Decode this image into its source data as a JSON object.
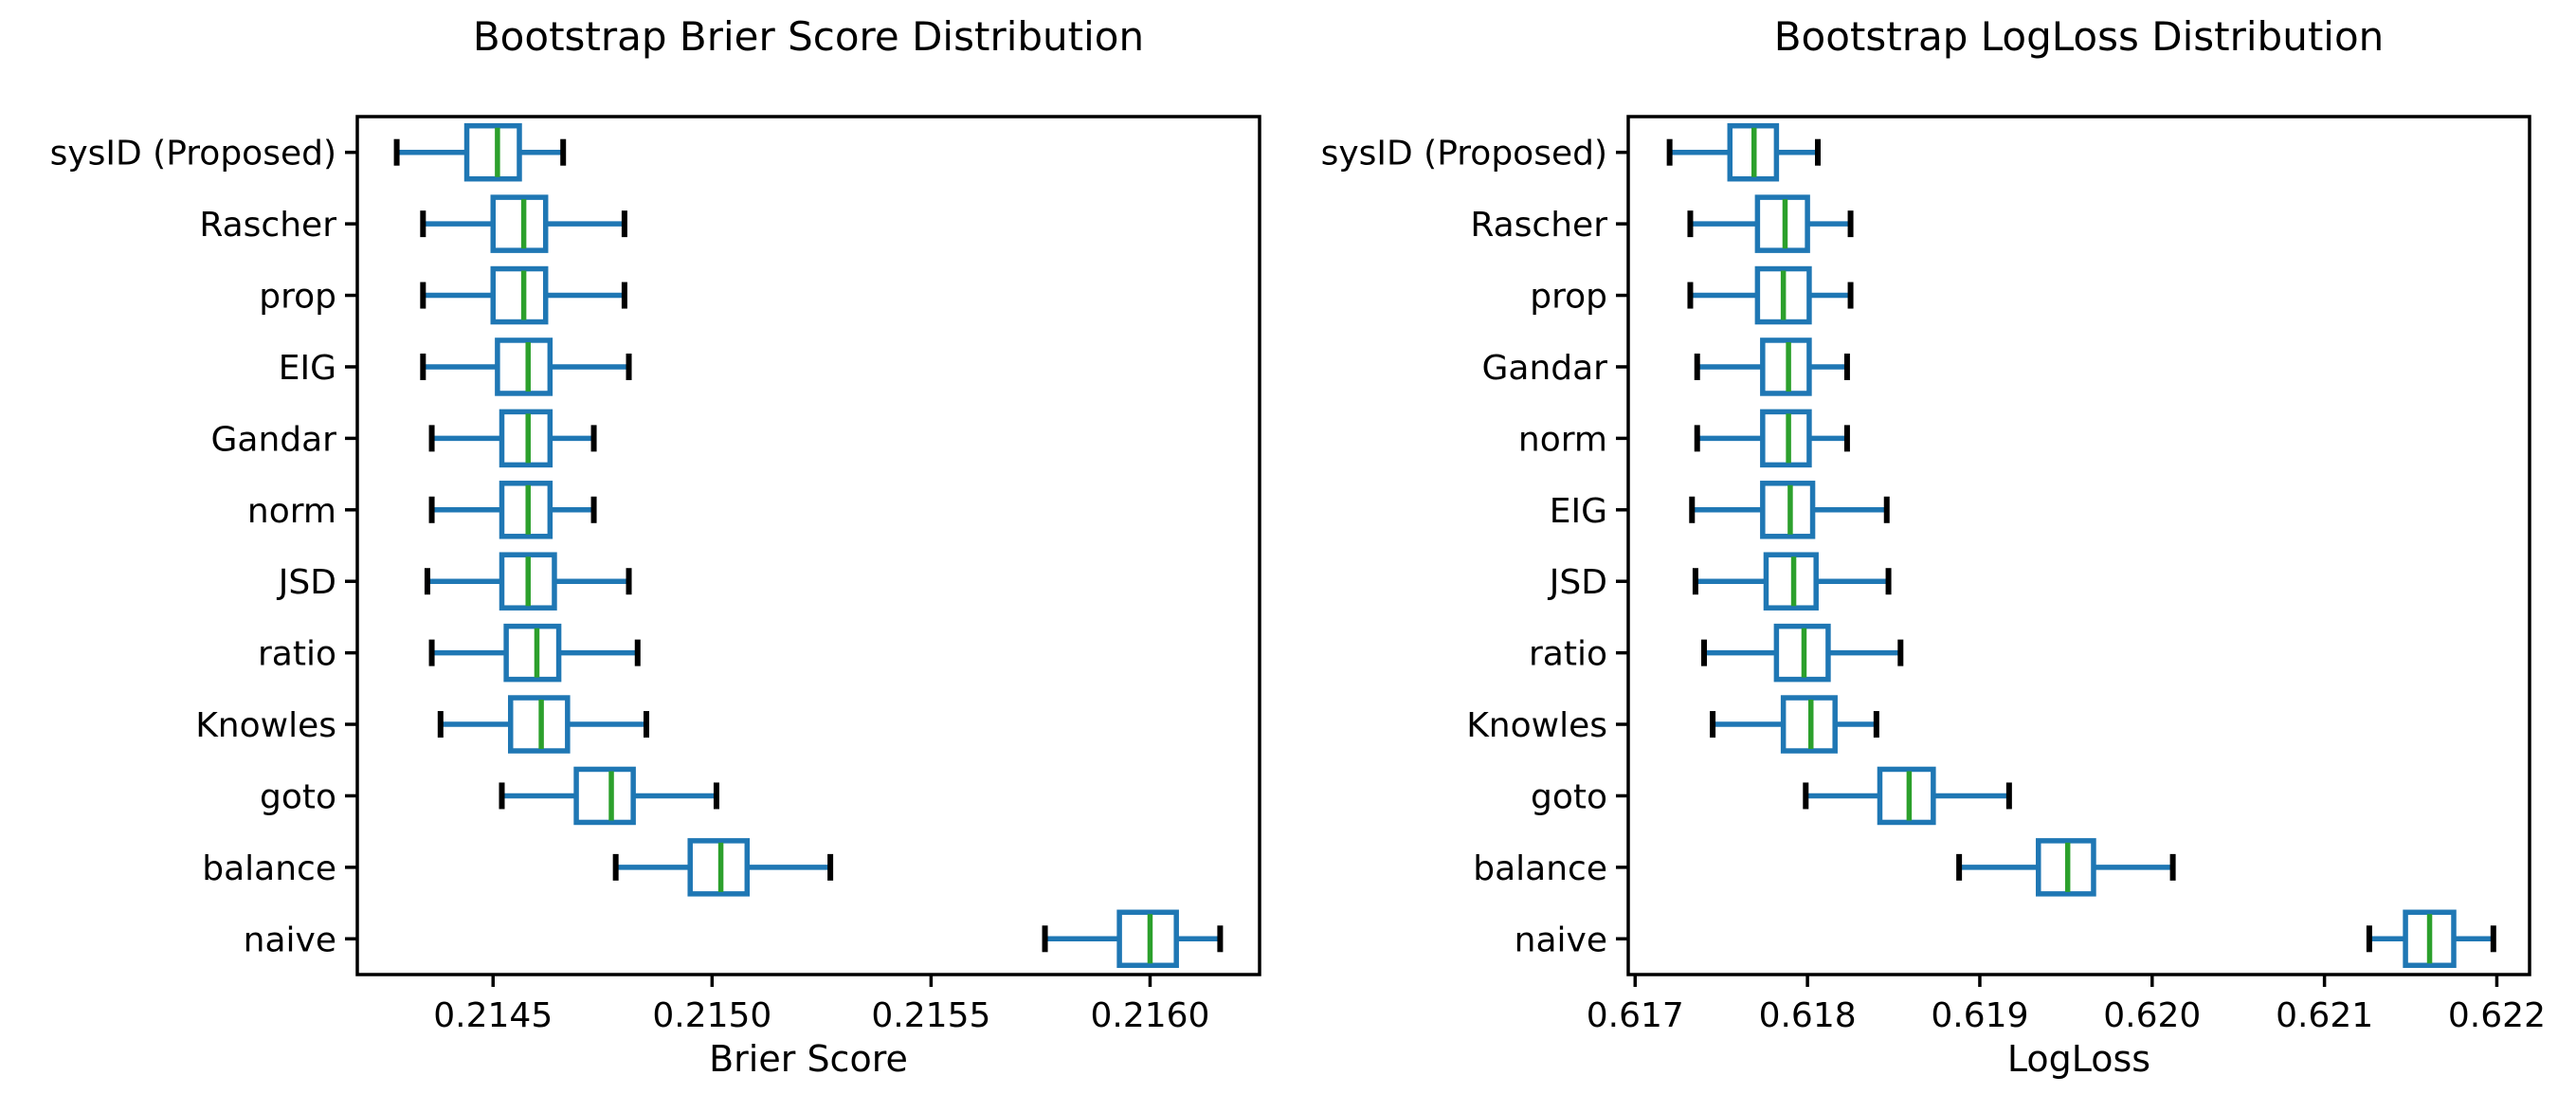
{
  "figure": {
    "background": "#ffffff",
    "text_color": "#000000"
  },
  "colors": {
    "box_edge": "#1f77b4",
    "whisker": "#1f77b4",
    "cap": "#000000",
    "median": "#2ca02c",
    "spine": "#000000",
    "tick": "#000000"
  },
  "chart_data": [
    {
      "type": "boxplot",
      "orientation": "horizontal",
      "title": "Bootstrap Brier Score Distribution",
      "xlabel": "Brier Score",
      "grid": false,
      "xlim": [
        0.21419,
        0.21625
      ],
      "xticks": [
        0.2145,
        0.215,
        0.2155,
        0.216
      ],
      "xtick_labels": [
        "0.2145",
        "0.2150",
        "0.2155",
        "0.2160"
      ],
      "categories_top_to_bottom": [
        "sysID (Proposed)",
        "Rascher",
        "prop",
        "EIG",
        "Gandar",
        "norm",
        "JSD",
        "ratio",
        "Knowles",
        "goto",
        "balance",
        "naive"
      ],
      "boxes": [
        {
          "label": "sysID (Proposed)",
          "whislo": 0.21428,
          "q1": 0.21444,
          "med": 0.21451,
          "q3": 0.21456,
          "whishi": 0.21466
        },
        {
          "label": "Rascher",
          "whislo": 0.21434,
          "q1": 0.2145,
          "med": 0.21457,
          "q3": 0.21462,
          "whishi": 0.2148
        },
        {
          "label": "prop",
          "whislo": 0.21434,
          "q1": 0.2145,
          "med": 0.21457,
          "q3": 0.21462,
          "whishi": 0.2148
        },
        {
          "label": "EIG",
          "whislo": 0.21434,
          "q1": 0.21451,
          "med": 0.21458,
          "q3": 0.21463,
          "whishi": 0.21481
        },
        {
          "label": "Gandar",
          "whislo": 0.21436,
          "q1": 0.21452,
          "med": 0.21458,
          "q3": 0.21463,
          "whishi": 0.21473
        },
        {
          "label": "norm",
          "whislo": 0.21436,
          "q1": 0.21452,
          "med": 0.21458,
          "q3": 0.21463,
          "whishi": 0.21473
        },
        {
          "label": "JSD",
          "whislo": 0.21435,
          "q1": 0.21452,
          "med": 0.21458,
          "q3": 0.21464,
          "whishi": 0.21481
        },
        {
          "label": "ratio",
          "whislo": 0.21436,
          "q1": 0.21453,
          "med": 0.2146,
          "q3": 0.21465,
          "whishi": 0.21483
        },
        {
          "label": "Knowles",
          "whislo": 0.21438,
          "q1": 0.21454,
          "med": 0.21461,
          "q3": 0.21467,
          "whishi": 0.21485
        },
        {
          "label": "goto",
          "whislo": 0.21452,
          "q1": 0.21469,
          "med": 0.21477,
          "q3": 0.21482,
          "whishi": 0.21501
        },
        {
          "label": "balance",
          "whislo": 0.21478,
          "q1": 0.21495,
          "med": 0.21502,
          "q3": 0.21508,
          "whishi": 0.21527
        },
        {
          "label": "naive",
          "whislo": 0.21576,
          "q1": 0.21593,
          "med": 0.216,
          "q3": 0.21606,
          "whishi": 0.21616
        }
      ]
    },
    {
      "type": "boxplot",
      "orientation": "horizontal",
      "title": "Bootstrap LogLoss Distribution",
      "xlabel": "LogLoss",
      "grid": false,
      "xlim": [
        0.61696,
        0.62219
      ],
      "xticks": [
        0.617,
        0.618,
        0.619,
        0.62,
        0.621,
        0.622
      ],
      "xtick_labels": [
        "0.617",
        "0.618",
        "0.619",
        "0.620",
        "0.621",
        "0.622"
      ],
      "categories_top_to_bottom": [
        "sysID (Proposed)",
        "Rascher",
        "prop",
        "Gandar",
        "norm",
        "EIG",
        "JSD",
        "ratio",
        "Knowles",
        "goto",
        "balance",
        "naive"
      ],
      "boxes": [
        {
          "label": "sysID (Proposed)",
          "whislo": 0.6172,
          "q1": 0.61755,
          "med": 0.61769,
          "q3": 0.61782,
          "whishi": 0.61806
        },
        {
          "label": "Rascher",
          "whislo": 0.61732,
          "q1": 0.61771,
          "med": 0.61787,
          "q3": 0.618,
          "whishi": 0.61825
        },
        {
          "label": "prop",
          "whislo": 0.61732,
          "q1": 0.61771,
          "med": 0.61786,
          "q3": 0.61801,
          "whishi": 0.61825
        },
        {
          "label": "Gandar",
          "whislo": 0.61736,
          "q1": 0.61774,
          "med": 0.61789,
          "q3": 0.61801,
          "whishi": 0.61823
        },
        {
          "label": "norm",
          "whislo": 0.61736,
          "q1": 0.61774,
          "med": 0.61789,
          "q3": 0.61801,
          "whishi": 0.61823
        },
        {
          "label": "EIG",
          "whislo": 0.61733,
          "q1": 0.61774,
          "med": 0.6179,
          "q3": 0.61803,
          "whishi": 0.61846
        },
        {
          "label": "JSD",
          "whislo": 0.61735,
          "q1": 0.61776,
          "med": 0.61792,
          "q3": 0.61805,
          "whishi": 0.61847
        },
        {
          "label": "ratio",
          "whislo": 0.6174,
          "q1": 0.61782,
          "med": 0.61798,
          "q3": 0.61812,
          "whishi": 0.61854
        },
        {
          "label": "Knowles",
          "whislo": 0.61745,
          "q1": 0.61786,
          "med": 0.61802,
          "q3": 0.61816,
          "whishi": 0.6184
        },
        {
          "label": "goto",
          "whislo": 0.61799,
          "q1": 0.61842,
          "med": 0.61859,
          "q3": 0.61873,
          "whishi": 0.61917
        },
        {
          "label": "balance",
          "whislo": 0.61888,
          "q1": 0.61934,
          "med": 0.61951,
          "q3": 0.61966,
          "whishi": 0.62012
        },
        {
          "label": "naive",
          "whislo": 0.62126,
          "q1": 0.62147,
          "med": 0.62161,
          "q3": 0.62175,
          "whishi": 0.62198
        }
      ]
    }
  ]
}
